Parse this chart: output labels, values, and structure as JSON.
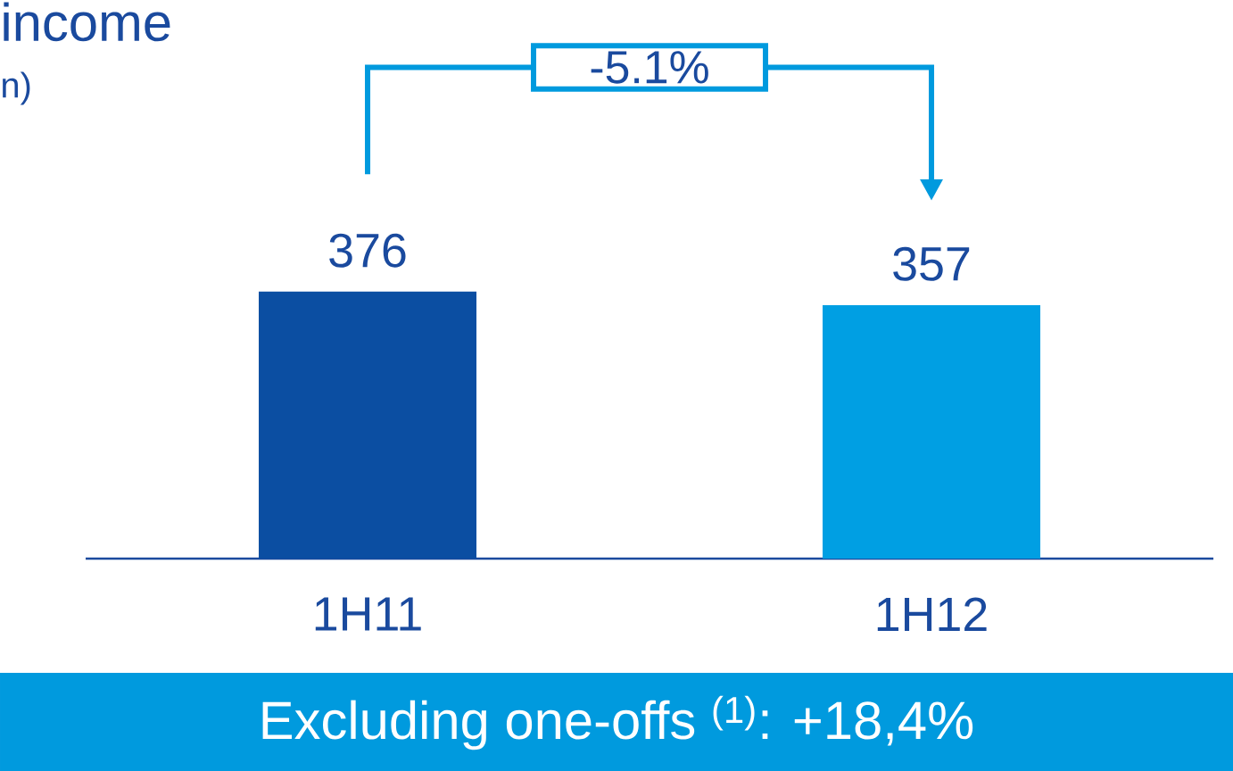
{
  "chart_data": {
    "type": "bar",
    "title": "income",
    "subtitle": "n)",
    "categories": [
      "1H11",
      "1H12"
    ],
    "values": [
      376,
      357
    ],
    "colors": [
      "#0b4ea2",
      "#009fe3"
    ],
    "data_labels": true,
    "annotations": [
      "-5.1%",
      "Excluding one-offs $^{(1)}$: +18,4%"
    ]
  }
}
